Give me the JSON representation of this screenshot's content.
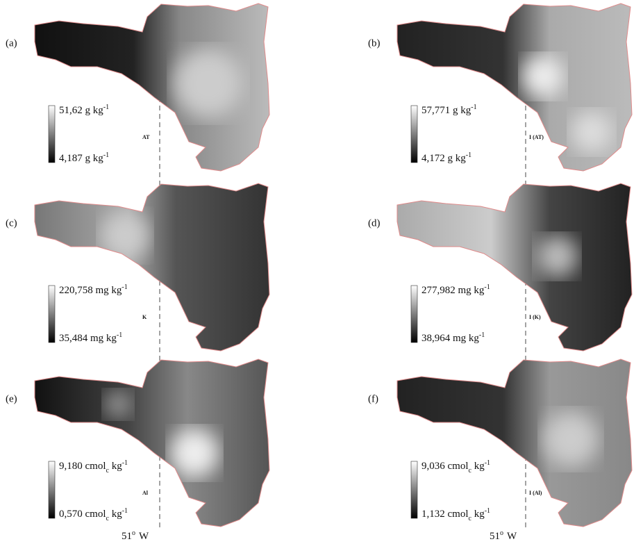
{
  "panels": [
    {
      "label": "(a)",
      "max": {
        "text": "51,62 g kg",
        "sup": "-1"
      },
      "min": {
        "text": "4,187 g kg",
        "sup": "-1"
      },
      "var": "AT"
    },
    {
      "label": "(b)",
      "max": {
        "text": "57,771 g kg",
        "sup": "-1"
      },
      "min": {
        "text": "4,172 g kg",
        "sup": "-1"
      },
      "var": "I (AT)"
    },
    {
      "label": "(c)",
      "max": {
        "text": "220,758 mg kg",
        "sup": "-1"
      },
      "min": {
        "text": "35,484 mg kg",
        "sup": "-1"
      },
      "var": "K"
    },
    {
      "label": "(d)",
      "max": {
        "text": "277,982 mg kg",
        "sup": "-1"
      },
      "min": {
        "text": "38,964 mg kg",
        "sup": "-1"
      },
      "var": "I (K)"
    },
    {
      "label": "(e)",
      "max": {
        "text": "9,180 cmol",
        "sub": "c",
        "rest": " kg",
        "sup": "-1"
      },
      "min": {
        "text": "0,570 cmol",
        "sub": "c",
        "rest": " kg",
        "sup": "-1"
      },
      "var": "Al"
    },
    {
      "label": "(f)",
      "max": {
        "text": "9,036 cmol",
        "sub": "c",
        "rest": " kg",
        "sup": "-1"
      },
      "min": {
        "text": "1,132 cmol",
        "sub": "c",
        "rest": " kg",
        "sup": "-1"
      },
      "var": "I (Al)"
    }
  ],
  "meridian": {
    "deg": "51",
    "sup": "o",
    "dir": "W"
  }
}
